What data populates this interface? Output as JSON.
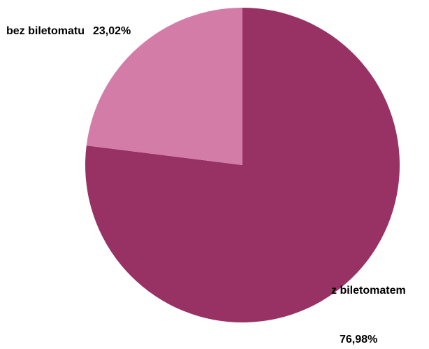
{
  "chart_data": {
    "type": "pie",
    "categories": [
      "z biletomatem",
      "bez biletomatu"
    ],
    "values": [
      76.98,
      23.02
    ],
    "value_labels": [
      "76,98%",
      "23,02%"
    ],
    "colors": [
      "#983265",
      "#d47ca8"
    ],
    "title": "",
    "legend": "none"
  }
}
